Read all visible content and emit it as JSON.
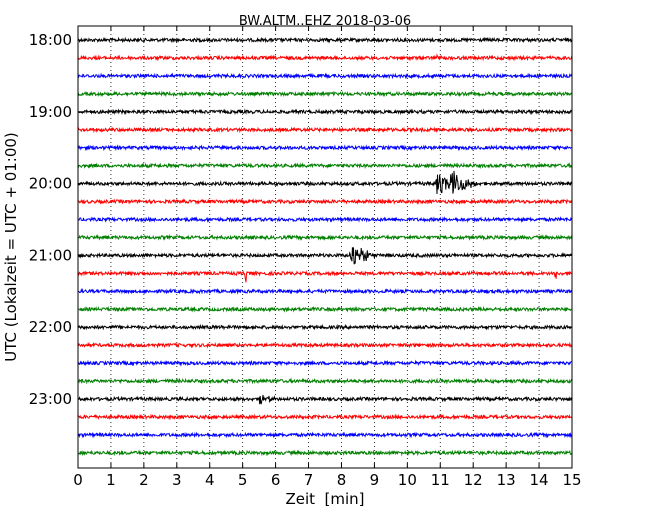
{
  "chart_data": {
    "type": "line",
    "title": "BW.ALTM..EHZ 2018-03-06",
    "xlabel": "Zeit  [min]",
    "ylabel": "UTC (Lokalzeit = UTC + 01:00)",
    "xlim": [
      0,
      15
    ],
    "x_ticks": [
      "0",
      "1",
      "2",
      "3",
      "4",
      "5",
      "6",
      "7",
      "8",
      "9",
      "10",
      "11",
      "12",
      "13",
      "14",
      "15"
    ],
    "y_tick_labels": [
      "18:00",
      "19:00",
      "20:00",
      "21:00",
      "22:00",
      "23:00"
    ],
    "grid": "vertical dotted",
    "trace_interval_minutes": 15,
    "first_trace_start": "18:00",
    "trace_colors": [
      "#000000",
      "#ff0000",
      "#0000ff",
      "#008000"
    ],
    "series": [
      {
        "start": "18:00",
        "color": "#000000",
        "events": []
      },
      {
        "start": "18:15",
        "color": "#ff0000",
        "events": [
          {
            "min": 10.9,
            "amp": 0.25,
            "dur": 0.15
          }
        ]
      },
      {
        "start": "18:30",
        "color": "#0000ff",
        "events": []
      },
      {
        "start": "18:45",
        "color": "#008000",
        "events": []
      },
      {
        "start": "19:00",
        "color": "#000000",
        "events": []
      },
      {
        "start": "19:15",
        "color": "#ff0000",
        "events": []
      },
      {
        "start": "19:30",
        "color": "#0000ff",
        "events": []
      },
      {
        "start": "19:45",
        "color": "#008000",
        "events": []
      },
      {
        "start": "20:00",
        "color": "#000000",
        "events": [
          {
            "min": 10.9,
            "amp": 0.75,
            "dur": 0.5
          },
          {
            "min": 11.3,
            "amp": 0.9,
            "dur": 0.8
          }
        ]
      },
      {
        "start": "20:15",
        "color": "#ff0000",
        "events": []
      },
      {
        "start": "20:30",
        "color": "#0000ff",
        "events": []
      },
      {
        "start": "20:45",
        "color": "#008000",
        "events": []
      },
      {
        "start": "21:00",
        "color": "#000000",
        "events": [
          {
            "min": 8.3,
            "amp": 0.85,
            "dur": 0.7
          }
        ]
      },
      {
        "start": "21:15",
        "color": "#ff0000",
        "events": [
          {
            "min": 5.1,
            "amp": 0.55,
            "dur": 0.05
          },
          {
            "min": 14.5,
            "amp": 0.55,
            "dur": 0.05
          }
        ]
      },
      {
        "start": "21:30",
        "color": "#0000ff",
        "events": []
      },
      {
        "start": "21:45",
        "color": "#008000",
        "events": []
      },
      {
        "start": "22:00",
        "color": "#000000",
        "events": []
      },
      {
        "start": "22:15",
        "color": "#ff0000",
        "events": []
      },
      {
        "start": "22:30",
        "color": "#0000ff",
        "events": []
      },
      {
        "start": "22:45",
        "color": "#008000",
        "events": []
      },
      {
        "start": "23:00",
        "color": "#000000",
        "events": [
          {
            "min": 5.5,
            "amp": 0.35,
            "dur": 0.5
          }
        ]
      },
      {
        "start": "23:15",
        "color": "#ff0000",
        "events": []
      },
      {
        "start": "23:30",
        "color": "#0000ff",
        "events": []
      },
      {
        "start": "23:45",
        "color": "#008000",
        "events": []
      }
    ]
  }
}
